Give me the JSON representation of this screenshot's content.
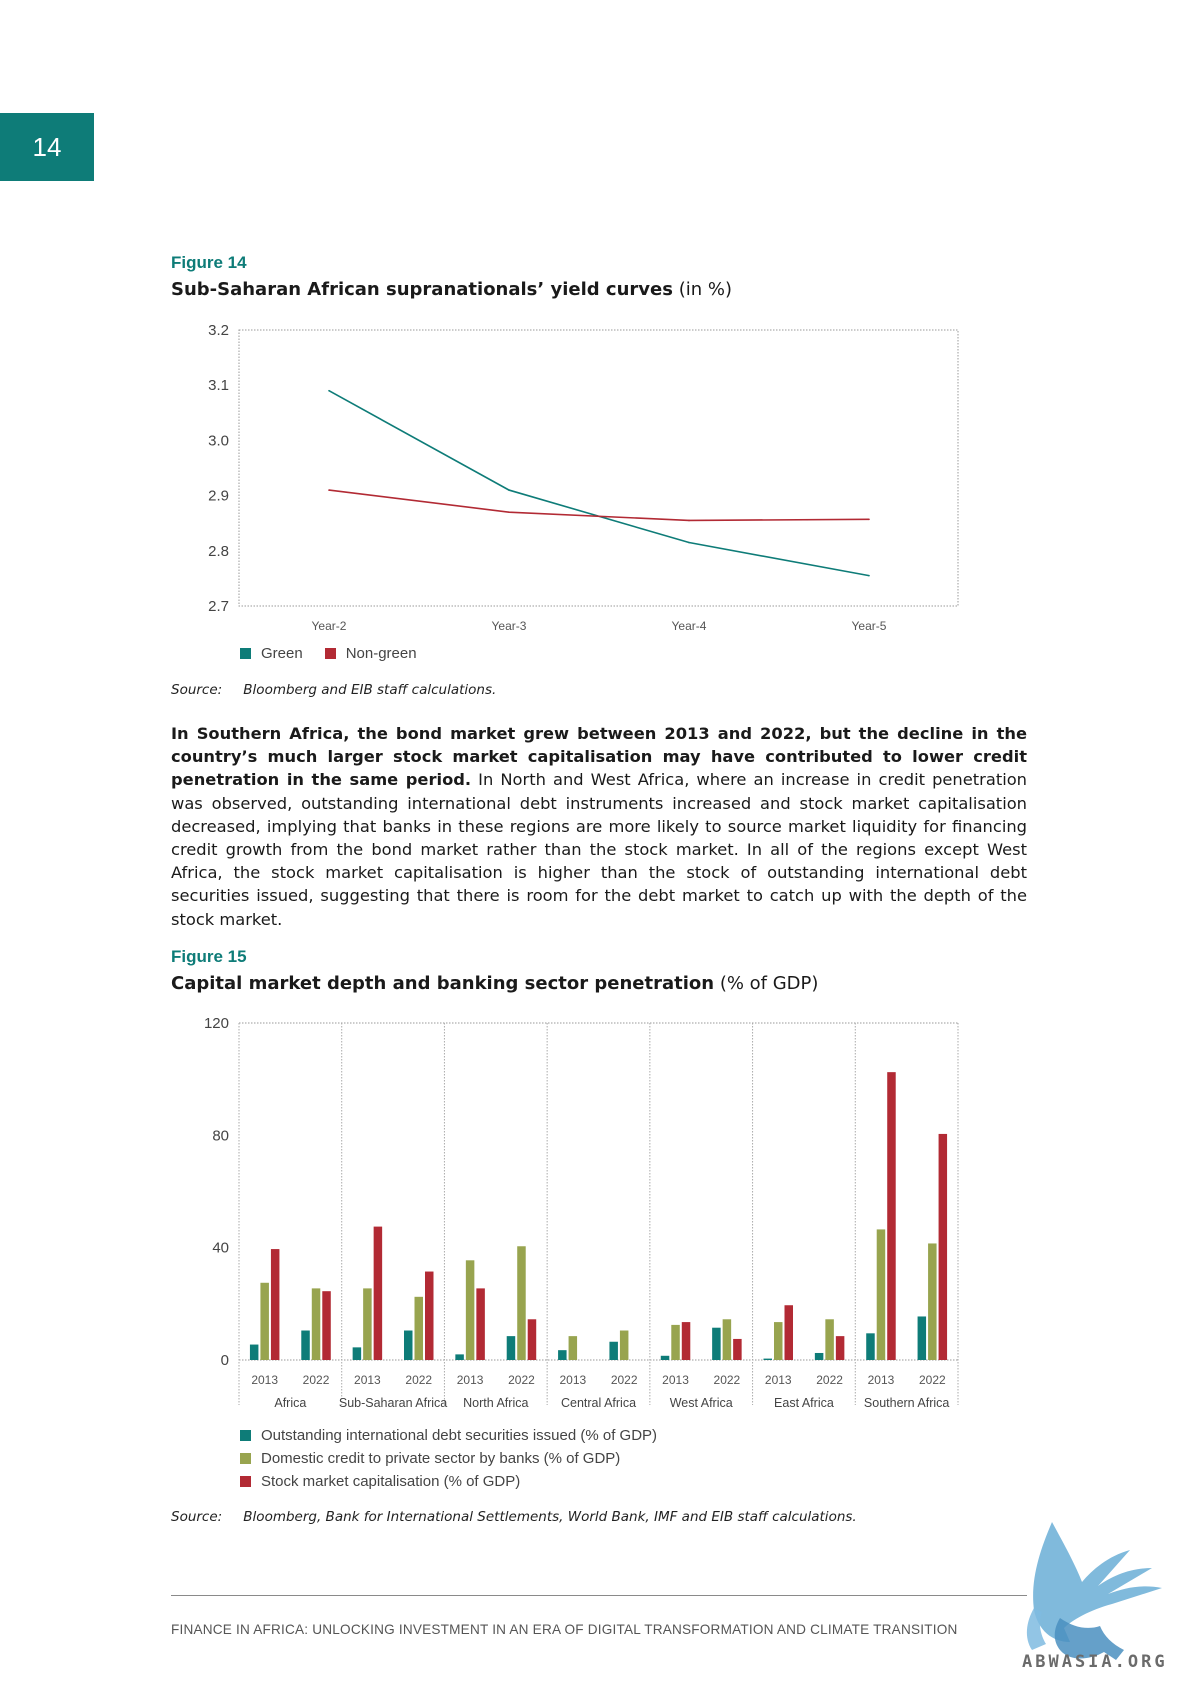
{
  "page_number": "14",
  "figure14": {
    "label": "Figure 14",
    "title": "Sub-Saharan African supranationals’ yield curves",
    "title_unit": "(in %)",
    "source_label": "Source:",
    "source_text": "Bloomberg and EIB staff calculations."
  },
  "body": {
    "lead": "In Southern Africa, the bond market grew between 2013 and 2022, but the decline in the country’s much larger stock market capitalisation may have contributed to lower credit penetration in the same period.",
    "rest": " In North and West Africa, where an increase in credit penetration was observed, outstanding international debt instruments increased and stock market capitalisation decreased, implying that banks in these regions are more likely to source market liquidity for financing credit growth from the bond market rather than the stock market. In all of the regions except West Africa, the stock market capitalisation is higher than the stock of outstanding international debt securities issued, suggesting that there is room for the debt market to catch up with the depth of the stock market."
  },
  "figure15": {
    "label": "Figure 15",
    "title": "Capital market depth and banking sector penetration",
    "title_unit": "(% of GDP)",
    "source_label": "Source:",
    "source_text": "Bloomberg, Bank for International Settlements, World Bank, IMF and EIB staff calculations."
  },
  "footer": "FINANCE IN AFRICA: UNLOCKING INVESTMENT IN AN ERA OF DIGITAL TRANSFORMATION AND CLIMATE TRANSITION",
  "watermark_text": "ABWASIA.ORG",
  "chart_data": [
    {
      "type": "line",
      "title": "Sub-Saharan African supranationals’ yield curves",
      "categories": [
        "Year-2",
        "Year-3",
        "Year-4",
        "Year-5"
      ],
      "ylim": [
        2.7,
        3.2
      ],
      "yticks": [
        "3.2",
        "3.1",
        "3.0",
        "2.9",
        "2.8",
        "2.7"
      ],
      "ytick_values": [
        3.2,
        3.1,
        3.0,
        2.9,
        2.8,
        2.7
      ],
      "series": [
        {
          "name": "Green",
          "values": [
            3.09,
            2.91,
            2.815,
            2.755
          ],
          "color": "#0e7c78"
        },
        {
          "name": "Non-green",
          "values": [
            2.91,
            2.87,
            2.855,
            2.857
          ],
          "color": "#b22a34"
        }
      ],
      "legend_position": "bottom-left"
    },
    {
      "type": "bar",
      "title": "Capital market depth and banking sector penetration",
      "groups": [
        "Africa",
        "Sub-Saharan Africa",
        "North Africa",
        "Central Africa",
        "West Africa",
        "East Africa",
        "Southern Africa"
      ],
      "years": [
        "2013",
        "2022"
      ],
      "ylim": [
        0,
        120
      ],
      "yticks": [
        "120",
        "80",
        "40",
        "0"
      ],
      "ytick_values": [
        120,
        80,
        40,
        0
      ],
      "series": [
        {
          "name": "Outstanding international debt securities issued (% of GDP)",
          "color": "#0e7c78",
          "values": [
            5.5,
            10.5,
            4.5,
            10.5,
            2,
            8.5,
            3.5,
            6.5,
            1.5,
            11.5,
            0.5,
            2.5,
            9.5,
            15.5
          ]
        },
        {
          "name": "Domestic credit to private sector by banks (% of GDP)",
          "color": "#98a44f",
          "values": [
            27.5,
            25.5,
            25.5,
            22.5,
            35.5,
            40.5,
            8.5,
            10.5,
            12.5,
            14.5,
            13.5,
            14.5,
            46.5,
            41.5
          ]
        },
        {
          "name": "Stock market capitalisation (% of GDP)",
          "color": "#b22a34",
          "values": [
            39.5,
            24.5,
            47.5,
            31.5,
            25.5,
            14.5,
            0,
            0,
            13.5,
            7.5,
            19.5,
            8.5,
            102.5,
            80.5
          ]
        }
      ],
      "legend_position": "bottom-left"
    }
  ]
}
